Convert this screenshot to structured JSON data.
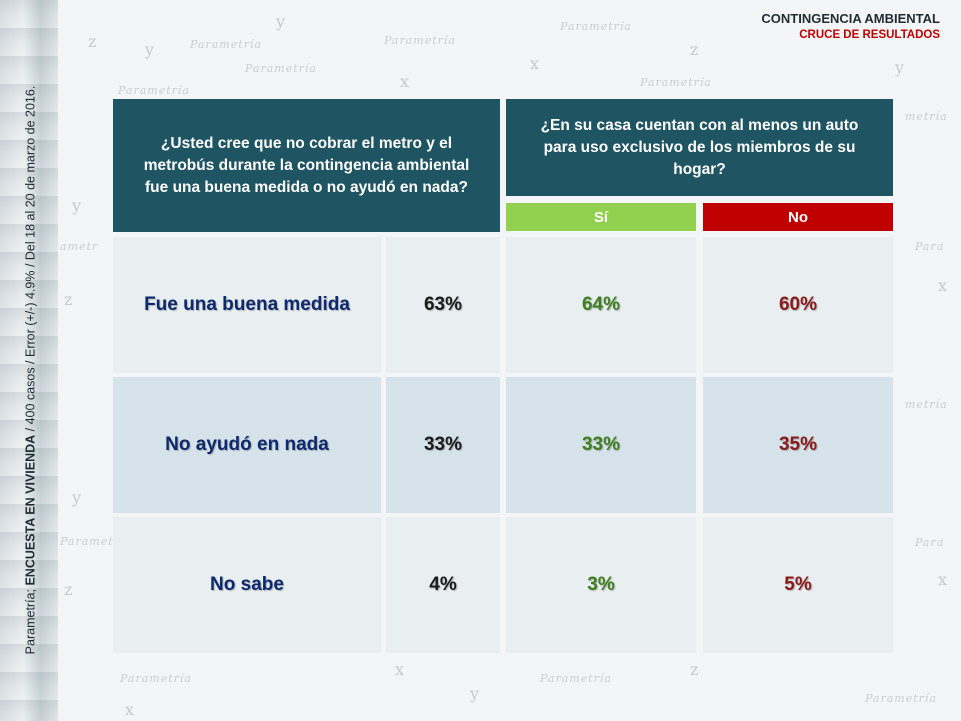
{
  "header": {
    "title": "CONTINGENCIA AMBIENTAL",
    "subtitle": "CRUCE DE RESULTADOS"
  },
  "side_note": {
    "prefix": "Parametría; ",
    "bold": "ENCUESTA EN VIVIENDA",
    "suffix": " /  400 casos / Error (+/-) 4.9% / Del 18 al 20 de marzo de 2016."
  },
  "question_left": "¿Usted cree que no cobrar el metro y el metrobús durante la contingencia ambiental fue una buena medida o no ayudó en nada?",
  "question_right": "¿En su casa cuentan con al menos un auto para uso exclusivo de los miembros de su hogar?",
  "columns": {
    "si": "Sí",
    "no": "No"
  },
  "colors": {
    "header_bg": "#1f5462",
    "si": "#92d050",
    "no": "#c00000"
  },
  "rows": [
    {
      "label": "Fue una buena medida",
      "total": "63%",
      "si": "64%",
      "no": "60%"
    },
    {
      "label": "No ayudó en nada",
      "total": "33%",
      "si": "33%",
      "no": "35%"
    },
    {
      "label": "No sabe",
      "total": "4%",
      "si": "3%",
      "no": "5%"
    }
  ]
}
